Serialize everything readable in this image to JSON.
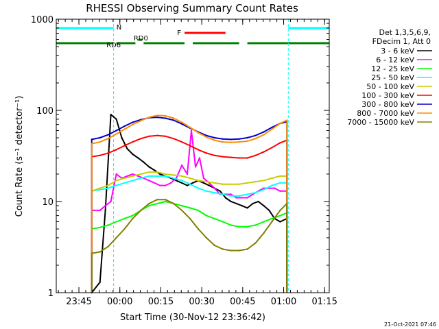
{
  "chart_data": {
    "type": "line",
    "title": "RHESSI Observing Summary Count Rates",
    "xlabel": "Start Time (30-Nov-12 23:36:42)",
    "ylabel": "Count Rate (s⁻¹ detector⁻¹)",
    "y_scale": "log",
    "ylim": [
      1,
      1000
    ],
    "xlim_minutes_from_start": [
      0,
      100
    ],
    "x_tick_labels": [
      "23:45",
      "00:00",
      "00:15",
      "00:30",
      "00:45",
      "01:00",
      "01:15"
    ],
    "x_tick_minutes": [
      8.3,
      23.3,
      38.3,
      53.3,
      68.3,
      83.3,
      98.3
    ],
    "y_tick_labels": [
      "1",
      "10",
      "100",
      "1000"
    ],
    "y_tick_values": [
      1,
      10,
      100,
      1000
    ],
    "grid": false,
    "legend_position": "right",
    "legend_header": [
      "Det 1,3,5,6,9,",
      "FDecim 1, Att 0"
    ],
    "series": [
      {
        "name": "3 - 6 keV",
        "color": "#000000",
        "x": [
          13,
          16,
          18,
          20,
          22,
          24,
          26,
          28,
          30,
          32,
          34,
          36,
          38,
          40,
          42,
          44,
          46,
          48,
          50,
          52,
          54,
          56,
          58,
          60,
          62,
          64,
          66,
          68,
          70,
          72,
          74,
          76,
          78,
          80,
          82,
          84.5
        ],
        "y": [
          1,
          1.3,
          8,
          90,
          80,
          50,
          38,
          33,
          30,
          27,
          24,
          22,
          20,
          19,
          18,
          17,
          16,
          15,
          16,
          17,
          16,
          15,
          14,
          13,
          11,
          10,
          9.5,
          9,
          8.5,
          9.5,
          10,
          9,
          8,
          6.5,
          6,
          6.5
        ]
      },
      {
        "name": "6 - 12 keV",
        "color": "#ff00ff",
        "x": [
          13,
          16,
          18,
          20,
          22,
          24,
          26,
          28,
          30,
          32,
          34,
          36,
          38,
          40,
          42,
          44,
          46,
          48,
          49.5,
          51,
          52.5,
          54,
          56,
          58,
          60,
          62,
          64,
          66,
          68,
          70,
          72,
          74,
          76,
          78,
          80,
          82,
          84.5
        ],
        "y": [
          8,
          8,
          9,
          10,
          20,
          18,
          19,
          20,
          19,
          18,
          17,
          16,
          15,
          15,
          16,
          18,
          25,
          20,
          60,
          24,
          30,
          18,
          16,
          14,
          12,
          12,
          12,
          11,
          11,
          11,
          12,
          13,
          14,
          14,
          14,
          13,
          13
        ]
      },
      {
        "name": "12 - 25 keV",
        "color": "#00ff00",
        "x": [
          13,
          16,
          19,
          22,
          25,
          28,
          31,
          34,
          37,
          40,
          43,
          46,
          49,
          52,
          55,
          58,
          61,
          64,
          67,
          70,
          73,
          76,
          79,
          82,
          84.5
        ],
        "y": [
          5,
          5.2,
          5.5,
          6,
          6.5,
          7,
          8,
          9,
          9.5,
          10,
          9.5,
          9,
          8.5,
          8,
          7,
          6.5,
          6,
          5.5,
          5.3,
          5.3,
          5.5,
          6,
          6.5,
          7,
          7.5
        ]
      },
      {
        "name": "25 - 50 keV",
        "color": "#00ffff",
        "x": [
          13,
          16,
          19,
          22,
          25,
          28,
          31,
          34,
          37,
          40,
          43,
          46,
          49,
          52,
          55,
          58,
          61,
          64,
          67,
          70,
          73,
          76,
          79,
          82,
          84.5
        ],
        "y": [
          13,
          13.5,
          14,
          15,
          16,
          17,
          18,
          19,
          19,
          19,
          18,
          17,
          15.5,
          14,
          13,
          12.5,
          12,
          11.5,
          11.5,
          12,
          12.5,
          13.5,
          15,
          16,
          16
        ]
      },
      {
        "name": "50 - 100 keV",
        "color": "#cccc00",
        "x": [
          13,
          16,
          19,
          22,
          25,
          28,
          31,
          34,
          37,
          40,
          43,
          46,
          49,
          52,
          55,
          58,
          61,
          64,
          67,
          70,
          73,
          76,
          79,
          82,
          84.5
        ],
        "y": [
          13,
          14,
          15,
          17,
          18,
          19,
          20,
          21,
          21,
          20,
          19.5,
          19,
          18,
          17,
          16.5,
          16,
          15.5,
          15.5,
          15.5,
          16,
          16.5,
          17,
          18,
          19,
          19
        ]
      },
      {
        "name": "100 - 300 keV",
        "color": "#ff0000",
        "x": [
          13,
          16,
          19,
          22,
          25,
          28,
          31,
          34,
          37,
          40,
          43,
          46,
          49,
          52,
          55,
          58,
          61,
          64,
          67,
          70,
          73,
          76,
          79,
          82,
          84.5
        ],
        "y": [
          31,
          32,
          34,
          37,
          41,
          45,
          49,
          52,
          53,
          52,
          49,
          45,
          41,
          37,
          34,
          32,
          31,
          30.5,
          30,
          30,
          32,
          35,
          39,
          44,
          47
        ]
      },
      {
        "name": "300 - 800 keV",
        "color": "#0000cc",
        "x": [
          13,
          16,
          19,
          22,
          25,
          28,
          31,
          34,
          37,
          40,
          43,
          46,
          49,
          52,
          55,
          58,
          61,
          64,
          67,
          70,
          73,
          76,
          79,
          82,
          84.5
        ],
        "y": [
          48,
          50,
          54,
          60,
          67,
          74,
          79,
          83,
          84,
          82,
          78,
          71,
          64,
          58,
          53,
          50,
          48.5,
          48,
          48.5,
          50,
          53,
          58,
          65,
          72,
          75
        ]
      },
      {
        "name": "800 - 7000 keV",
        "color": "#ff8c00",
        "x": [
          13,
          16,
          19,
          22,
          25,
          28,
          31,
          34,
          37,
          40,
          43,
          46,
          49,
          52,
          55,
          58,
          61,
          64,
          67,
          70,
          73,
          76,
          79,
          82,
          84.5
        ],
        "y": [
          43,
          45,
          49,
          55,
          62,
          70,
          77,
          84,
          88,
          87,
          82,
          74,
          65,
          57,
          51,
          47,
          45,
          44.5,
          45,
          46,
          49,
          54,
          62,
          72,
          78
        ]
      },
      {
        "name": "7000 - 15000 keV",
        "color": "#808000",
        "x": [
          13,
          16,
          19,
          22,
          25,
          28,
          31,
          34,
          37,
          40,
          43,
          46,
          49,
          52,
          55,
          58,
          61,
          64,
          67,
          70,
          73,
          76,
          79,
          82,
          84.5
        ],
        "y": [
          2.7,
          2.8,
          3.2,
          4,
          5,
          6.5,
          8,
          9.5,
          10.5,
          10.5,
          9.5,
          8,
          6.5,
          5,
          4,
          3.3,
          3,
          2.9,
          2.9,
          3,
          3.5,
          4.5,
          6,
          8,
          9.5
        ]
      }
    ],
    "flags": [
      {
        "label": "N",
        "color": "#00ffff",
        "segments": [
          [
            0,
            21
          ],
          [
            85,
            100
          ]
        ]
      },
      {
        "label": "F",
        "color": "#ff0000",
        "segments": [
          [
            47,
            62
          ]
        ]
      },
      {
        "label": "RD0",
        "color": "#008000",
        "segments": [
          [
            30,
            31.5
          ]
        ]
      },
      {
        "label": "RD6",
        "color": "#008000",
        "segments": [
          [
            0,
            21
          ],
          [
            22,
            29
          ],
          [
            32,
            47
          ],
          [
            50,
            67
          ],
          [
            70,
            100
          ]
        ]
      }
    ],
    "cyan_vertical_lines_minutes": [
      0,
      21,
      85,
      100
    ],
    "timestamp": "21-Oct-2021 07:46"
  }
}
